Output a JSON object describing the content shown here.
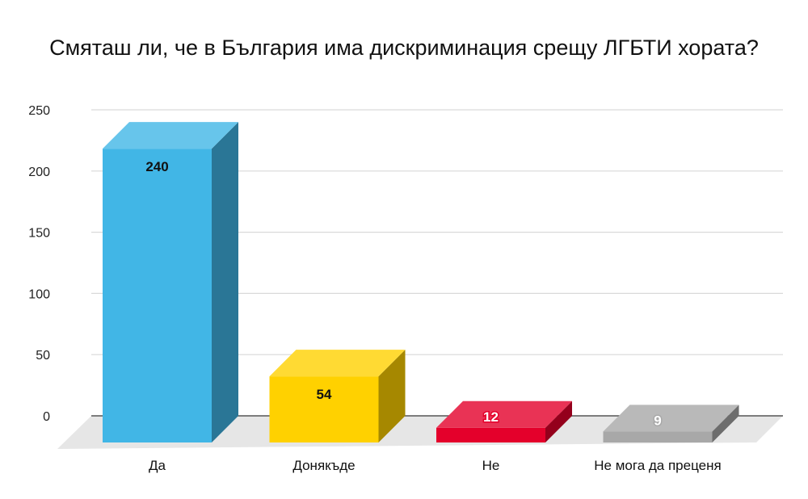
{
  "chart_data": {
    "type": "bar",
    "title": "Смяташ ли, че в България има дискриминация срещу ЛГБТИ хората?",
    "xlabel": "",
    "ylabel": "",
    "categories": [
      "Да",
      "Донякъде",
      "Не",
      "Не мога да преценя"
    ],
    "values": [
      240,
      54,
      12,
      9
    ],
    "data_labels": [
      "240",
      "54",
      "12",
      "9"
    ],
    "ylim": [
      0,
      250
    ],
    "yticks": [
      "0",
      "50",
      "100",
      "150",
      "200",
      "250"
    ],
    "grid": true,
    "legend": "none",
    "style": "3d-bars",
    "colors": {
      "bars": [
        "#41b6e6",
        "#ffd100",
        "#e4002b",
        "#a8a8a8"
      ],
      "label_text": [
        "#111111",
        "#111111",
        "#ffffff",
        "#ffffff"
      ],
      "label_outline": [
        "none",
        "none",
        "#e4002b",
        "#a8a8a8"
      ],
      "gridline": "#d9d9d9",
      "floor": "#e6e6e6"
    }
  }
}
